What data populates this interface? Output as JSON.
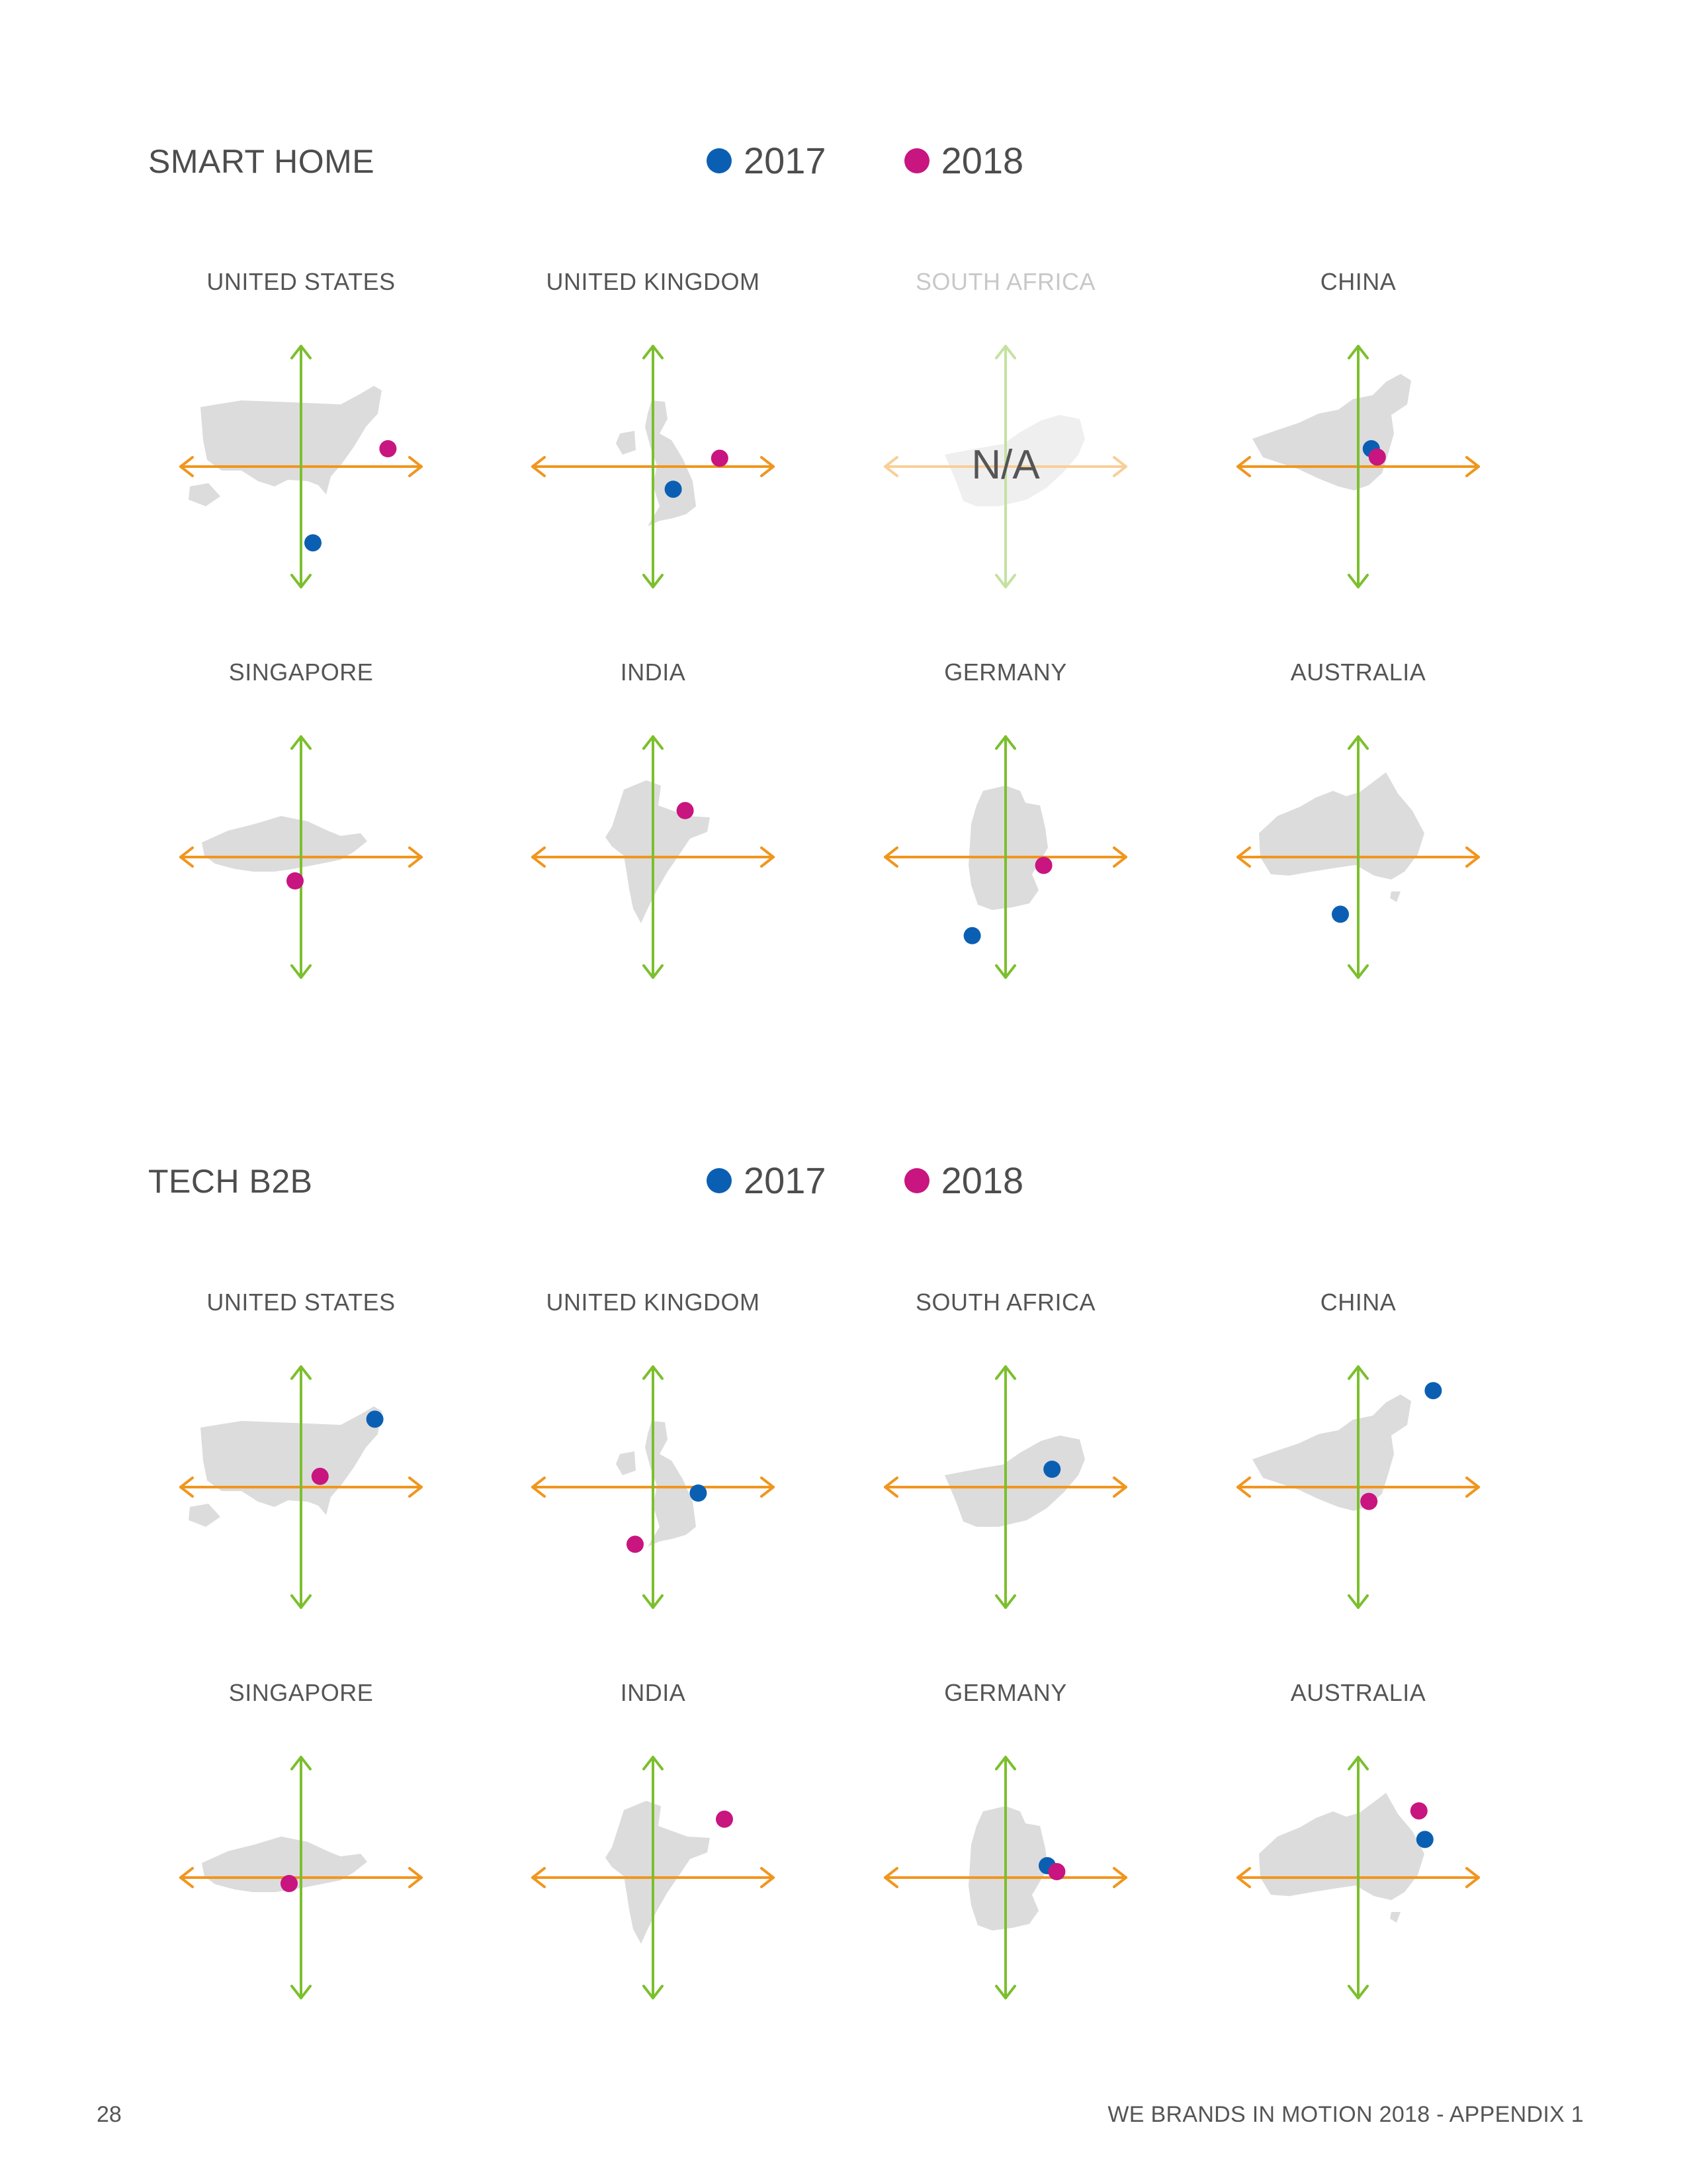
{
  "page_number": "28",
  "footer_title": "WE BRANDS IN MOTION 2018 - APPENDIX 1",
  "colors": {
    "year_2017": "#0b5fb3",
    "year_2018": "#c8157f",
    "horizontal_axis": "#f0961e",
    "vertical_axis": "#7cbf2e",
    "map_fill": "#dcdcdc"
  },
  "legend": [
    {
      "label": "2017",
      "color": "#0b5fb3"
    },
    {
      "label": "2018",
      "color": "#c8157f"
    }
  ],
  "chart_data": [
    {
      "type": "scatter",
      "title": "SMART HOME",
      "xlim": [
        -1,
        1
      ],
      "ylim": [
        -1,
        1
      ],
      "series_names": [
        "2017",
        "2018"
      ],
      "panels": [
        {
          "country": "UNITED STATES",
          "na": false,
          "points": {
            "2017": [
              0.1,
              -0.64
            ],
            "2018": [
              0.73,
              0.15
            ]
          }
        },
        {
          "country": "UNITED KINGDOM",
          "na": false,
          "points": {
            "2017": [
              0.17,
              -0.19
            ],
            "2018": [
              0.56,
              0.07
            ]
          }
        },
        {
          "country": "SOUTH AFRICA",
          "na": true,
          "na_label": "N/A",
          "points": {}
        },
        {
          "country": "CHINA",
          "na": false,
          "points": {
            "2017": [
              0.11,
              0.15
            ],
            "2018": [
              0.16,
              0.08
            ]
          }
        },
        {
          "country": "SINGAPORE",
          "na": false,
          "points": {
            "2018": [
              -0.05,
              -0.2
            ]
          }
        },
        {
          "country": "INDIA",
          "na": false,
          "points": {
            "2018": [
              0.27,
              0.39
            ]
          }
        },
        {
          "country": "GERMANY",
          "na": false,
          "points": {
            "2017": [
              -0.28,
              -0.66
            ],
            "2018": [
              0.32,
              -0.07
            ]
          }
        },
        {
          "country": "AUSTRALIA",
          "na": false,
          "points": {
            "2017": [
              -0.15,
              -0.48
            ]
          }
        }
      ]
    },
    {
      "type": "scatter",
      "title": "TECH B2B",
      "xlim": [
        -1,
        1
      ],
      "ylim": [
        -1,
        1
      ],
      "series_names": [
        "2017",
        "2018"
      ],
      "panels": [
        {
          "country": "UNITED STATES",
          "na": false,
          "points": {
            "2017": [
              0.62,
              0.57
            ],
            "2018": [
              0.16,
              0.09
            ]
          }
        },
        {
          "country": "UNITED KINGDOM",
          "na": false,
          "points": {
            "2017": [
              0.38,
              -0.05
            ],
            "2018": [
              -0.15,
              -0.48
            ]
          }
        },
        {
          "country": "SOUTH AFRICA",
          "na": false,
          "points": {
            "2017": [
              0.39,
              0.15
            ]
          }
        },
        {
          "country": "CHINA",
          "na": false,
          "points": {
            "2017": [
              0.63,
              0.81
            ],
            "2018": [
              0.09,
              -0.12
            ]
          }
        },
        {
          "country": "SINGAPORE",
          "na": false,
          "points": {
            "2018": [
              -0.1,
              -0.05
            ]
          }
        },
        {
          "country": "INDIA",
          "na": false,
          "points": {
            "2018": [
              0.6,
              0.49
            ]
          }
        },
        {
          "country": "GERMANY",
          "na": false,
          "points": {
            "2017": [
              0.35,
              0.1
            ],
            "2018": [
              0.43,
              0.05
            ]
          }
        },
        {
          "country": "AUSTRALIA",
          "na": false,
          "points": {
            "2017": [
              0.56,
              0.32
            ],
            "2018": [
              0.51,
              0.56
            ]
          }
        }
      ]
    }
  ]
}
